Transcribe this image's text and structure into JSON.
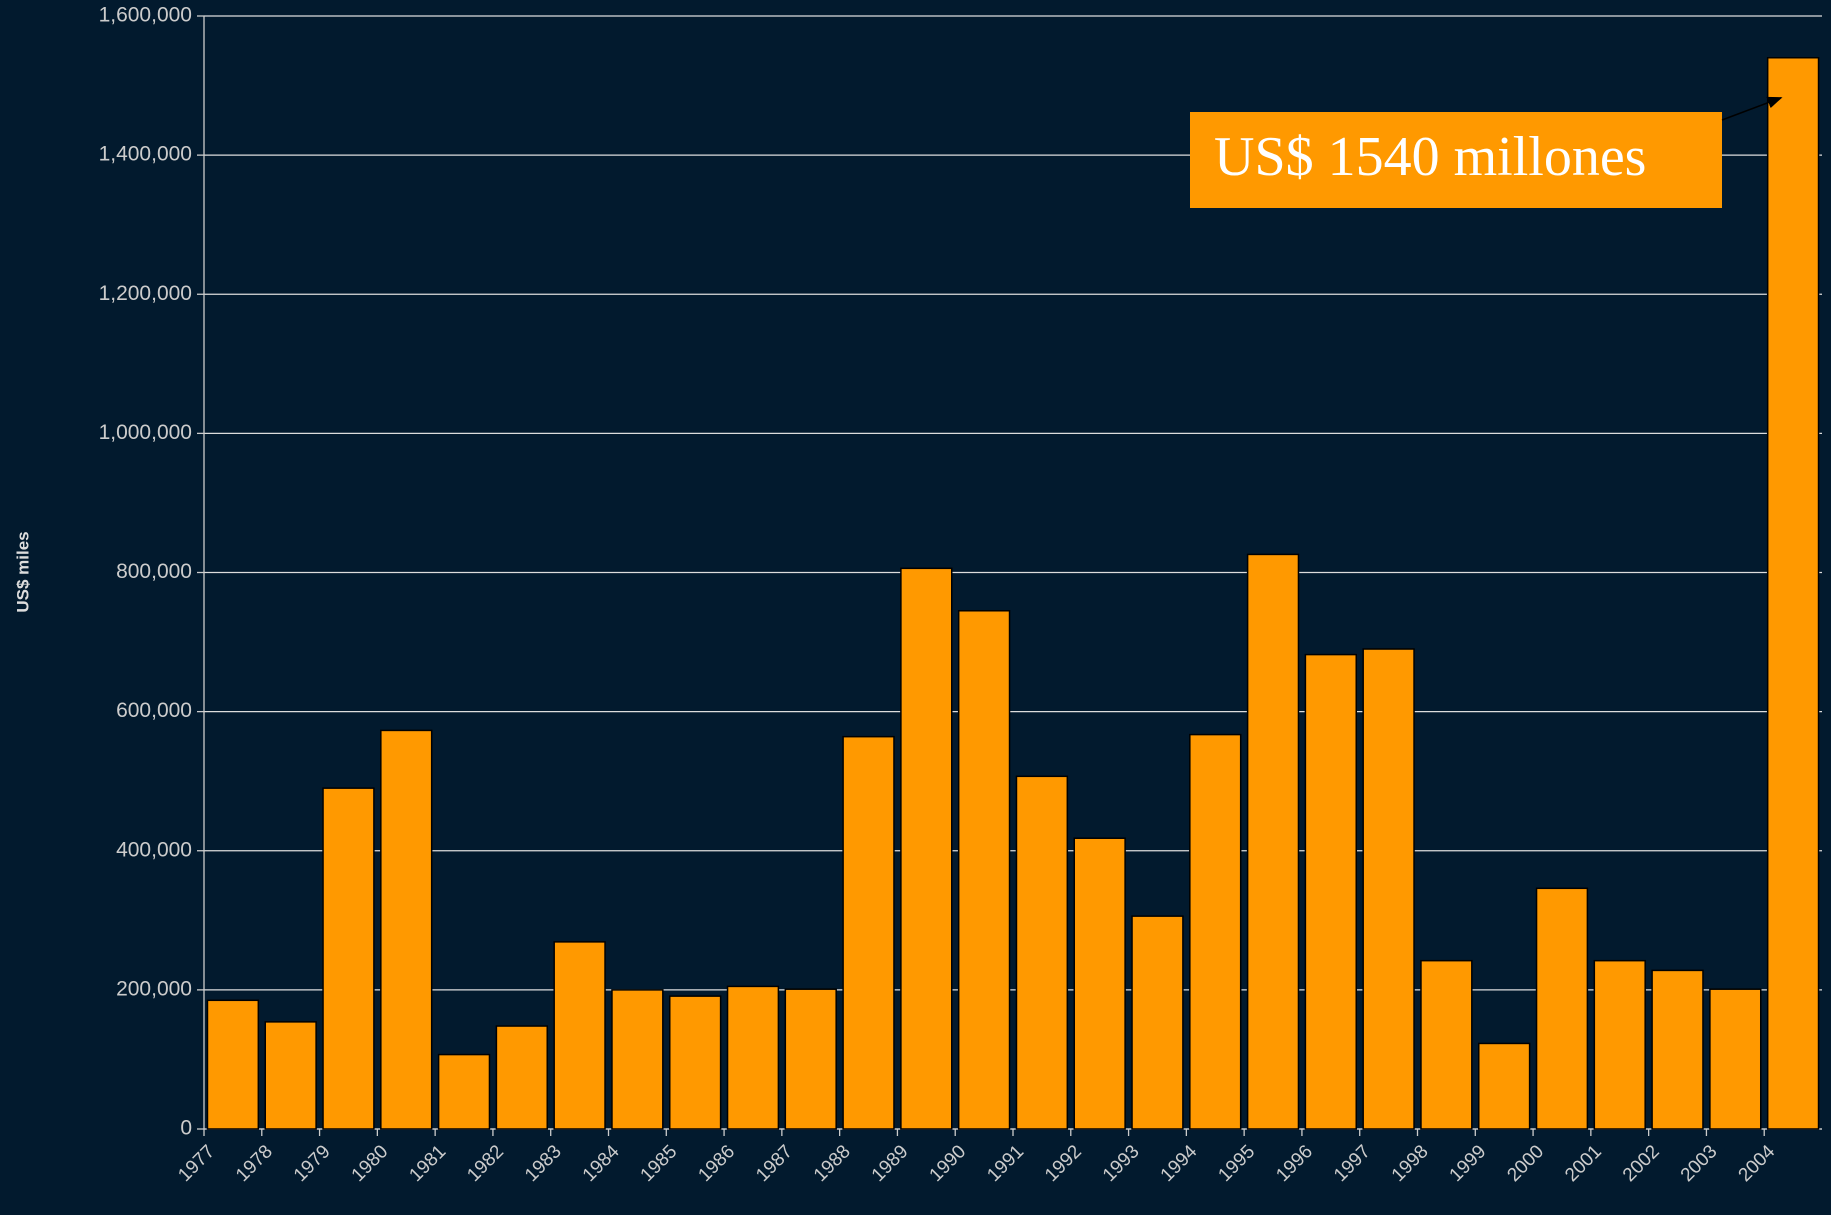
{
  "chart_data": {
    "type": "bar",
    "y_label": "US$ miles",
    "annotation": "US$ 1540 millones",
    "categories": [
      "1977",
      "1978",
      "1979",
      "1980",
      "1981",
      "1982",
      "1983",
      "1984",
      "1985",
      "1986",
      "1987",
      "1988",
      "1989",
      "1990",
      "1991",
      "1992",
      "1993",
      "1994",
      "1995",
      "1996",
      "1997",
      "1998",
      "1999",
      "2000",
      "2001",
      "2002",
      "2003",
      "2004"
    ],
    "values": [
      185000,
      154000,
      490000,
      573000,
      107000,
      148000,
      269000,
      200000,
      191000,
      205000,
      201000,
      564000,
      806000,
      745000,
      507000,
      418000,
      306000,
      567000,
      826000,
      682000,
      690000,
      242000,
      123000,
      346000,
      242000,
      228000,
      201000,
      1540000
    ],
    "color": "#ff9900",
    "ylim": [
      0,
      1600000
    ],
    "yticks": [
      0,
      {
        "value": 200000,
        "label": "200,000"
      },
      {
        "value": 400000,
        "label": "400,000"
      },
      {
        "value": 600000,
        "label": "600,000"
      },
      {
        "value": 800000,
        "label": "800,000"
      },
      {
        "value": 1000000,
        "label": "1,000,000"
      },
      {
        "value": 1200000,
        "label": "1,200,000"
      },
      {
        "value": 1400000,
        "label": "1,400,000"
      },
      {
        "value": 1600000,
        "label": "1,600,000"
      }
    ],
    "grid": true
  }
}
